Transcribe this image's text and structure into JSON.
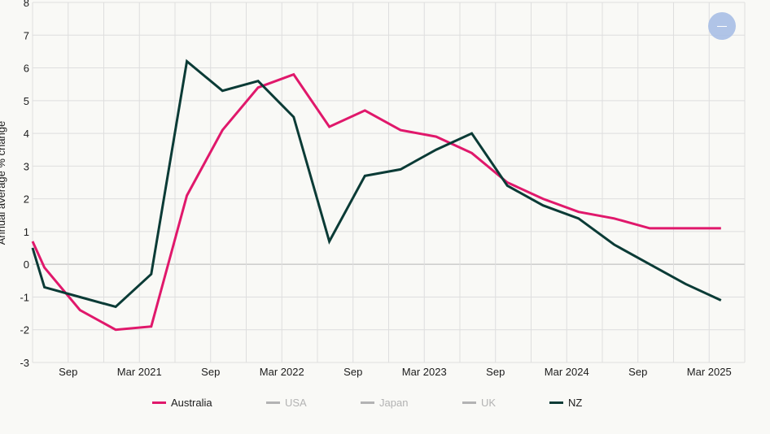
{
  "chart_data": {
    "type": "line",
    "ylabel": "Annual average % change",
    "ylim": [
      -3,
      8
    ],
    "yticks": [
      -3,
      -2,
      -1,
      0,
      1,
      2,
      3,
      4,
      5,
      6,
      7,
      8
    ],
    "grid": true,
    "legend_placement": "bottom",
    "x_start": "Jun 2020",
    "x_end": "Jun 2025",
    "x_ticks": [
      {
        "x": "Sep 2020",
        "label": "Sep"
      },
      {
        "x": "Mar 2021",
        "label": "Mar 2021"
      },
      {
        "x": "Sep 2021",
        "label": "Sep"
      },
      {
        "x": "Mar 2022",
        "label": "Mar 2022"
      },
      {
        "x": "Sep 2022",
        "label": "Sep"
      },
      {
        "x": "Mar 2023",
        "label": "Mar 2023"
      },
      {
        "x": "Sep 2023",
        "label": "Sep"
      },
      {
        "x": "Mar 2024",
        "label": "Mar 2024"
      },
      {
        "x": "Sep 2024",
        "label": "Sep"
      },
      {
        "x": "Mar 2025",
        "label": "Mar 2025"
      }
    ],
    "series": [
      {
        "name": "Australia",
        "color": "#e0186b",
        "visible": true,
        "points": [
          [
            "Jun 2020",
            0.7
          ],
          [
            "Jul 2020",
            -0.1
          ],
          [
            "Oct 2020",
            -1.4
          ],
          [
            "Jan 2021",
            -2.0
          ],
          [
            "Apr 2021",
            -1.9
          ],
          [
            "Jul 2021",
            2.1
          ],
          [
            "Oct 2021",
            4.1
          ],
          [
            "Jan 2022",
            5.4
          ],
          [
            "Apr 2022",
            5.8
          ],
          [
            "Jul 2022",
            4.2
          ],
          [
            "Oct 2022",
            4.7
          ],
          [
            "Jan 2023",
            4.1
          ],
          [
            "Apr 2023",
            3.9
          ],
          [
            "Jul 2023",
            3.4
          ],
          [
            "Oct 2023",
            2.5
          ],
          [
            "Jan 2024",
            2.0
          ],
          [
            "Apr 2024",
            1.6
          ],
          [
            "Jul 2024",
            1.4
          ],
          [
            "Oct 2024",
            1.1
          ],
          [
            "Jan 2025",
            1.1
          ],
          [
            "Apr 2025",
            1.1
          ]
        ]
      },
      {
        "name": "USA",
        "color": "#b3b3b3",
        "visible": false,
        "points": []
      },
      {
        "name": "Japan",
        "color": "#b3b3b3",
        "visible": false,
        "points": []
      },
      {
        "name": "UK",
        "color": "#b3b3b3",
        "visible": false,
        "points": []
      },
      {
        "name": "NZ",
        "color": "#0b3b36",
        "visible": true,
        "points": [
          [
            "Jun 2020",
            0.5
          ],
          [
            "Jul 2020",
            -0.7
          ],
          [
            "Oct 2020",
            -1.0
          ],
          [
            "Jan 2021",
            -1.3
          ],
          [
            "Apr 2021",
            -0.3
          ],
          [
            "Jul 2021",
            6.2
          ],
          [
            "Oct 2021",
            5.3
          ],
          [
            "Jan 2022",
            5.6
          ],
          [
            "Apr 2022",
            4.5
          ],
          [
            "Jul 2022",
            0.7
          ],
          [
            "Oct 2022",
            2.7
          ],
          [
            "Jan 2023",
            2.9
          ],
          [
            "Apr 2023",
            3.5
          ],
          [
            "Jul 2023",
            4.0
          ],
          [
            "Oct 2023",
            2.4
          ],
          [
            "Jan 2024",
            1.8
          ],
          [
            "Apr 2024",
            1.4
          ],
          [
            "Jul 2024",
            0.6
          ],
          [
            "Oct 2024",
            0.0
          ],
          [
            "Jan 2025",
            -0.6
          ],
          [
            "Apr 2025",
            -1.1
          ]
        ]
      }
    ]
  },
  "legend": [
    {
      "label": "Australia",
      "color": "#e0186b",
      "text_color": "#1c1c1c"
    },
    {
      "label": "USA",
      "color": "#b3b3b3",
      "text_color": "#b3b3b3"
    },
    {
      "label": "Japan",
      "color": "#b3b3b3",
      "text_color": "#b3b3b3"
    },
    {
      "label": "UK",
      "color": "#b3b3b3",
      "text_color": "#b3b3b3"
    },
    {
      "label": "NZ",
      "color": "#0b3b36",
      "text_color": "#1c1c1c"
    }
  ],
  "zoom_button": {
    "icon": "minus-icon",
    "color": "#a9bfe6"
  }
}
